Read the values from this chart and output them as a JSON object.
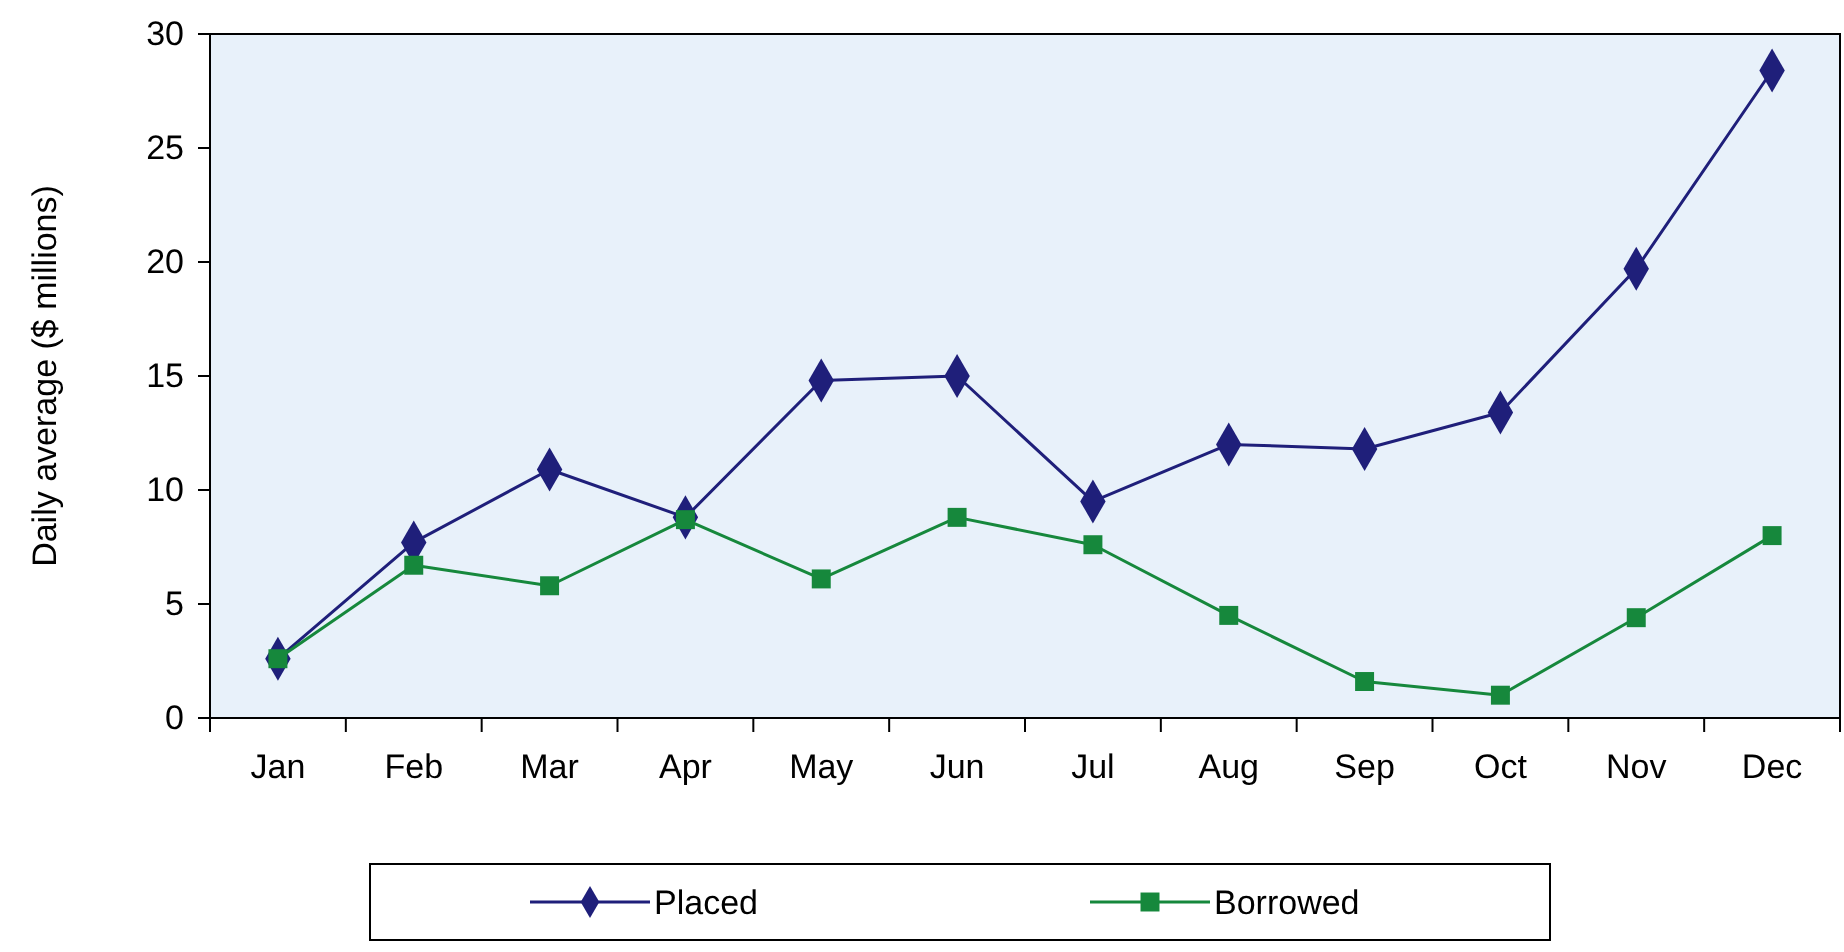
{
  "chart_data": {
    "type": "line",
    "ylabel": "Daily average ($ millions)",
    "categories": [
      "Jan",
      "Feb",
      "Mar",
      "Apr",
      "May",
      "Jun",
      "Jul",
      "Aug",
      "Sep",
      "Oct",
      "Nov",
      "Dec"
    ],
    "series": [
      {
        "name": "Placed",
        "color": "#1f1f7a",
        "marker": "diamond",
        "values": [
          2.6,
          7.7,
          10.9,
          8.8,
          14.8,
          15.0,
          9.5,
          12.0,
          11.8,
          13.4,
          19.7,
          28.4
        ]
      },
      {
        "name": "Borrowed",
        "color": "#16883c",
        "marker": "square",
        "values": [
          2.6,
          6.7,
          5.8,
          8.7,
          6.1,
          8.8,
          7.6,
          4.5,
          1.6,
          1.0,
          4.4,
          8.0
        ]
      }
    ],
    "ylim": [
      0,
      30
    ],
    "yticks": [
      0,
      5,
      10,
      15,
      20,
      25,
      30
    ],
    "grid": false,
    "legend": "bottom",
    "line_style": "solid"
  }
}
